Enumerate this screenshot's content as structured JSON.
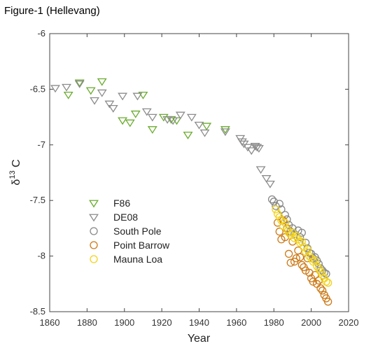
{
  "figure_title": "Figure-1 (Hellevang)",
  "chart_data": {
    "type": "scatter",
    "title": "",
    "xlabel": "Year",
    "ylabel_main": "δ",
    "ylabel_sup": "13",
    "ylabel_tail": " C",
    "xlim": [
      1860,
      2020
    ],
    "ylim": [
      -8.5,
      -6
    ],
    "x_ticks": [
      1860,
      1880,
      1900,
      1920,
      1940,
      1960,
      1980,
      2000,
      2020
    ],
    "y_ticks": [
      -6,
      -6.5,
      -7,
      -7.5,
      -8,
      -8.5
    ],
    "y_tick_labels": [
      "-6",
      "-6.5",
      "-7",
      "-7.5",
      "-8",
      "-8.5"
    ],
    "grid": false,
    "legend_position": "left-middle",
    "series": [
      {
        "name": "F86",
        "marker": "triangle-down",
        "color": "#6aab2e",
        "x": [
          1870,
          1876,
          1882,
          1888,
          1899,
          1903,
          1906,
          1910,
          1915,
          1921,
          1925,
          1928,
          1934,
          1944,
          1954
        ],
        "y": [
          -6.55,
          -6.44,
          -6.51,
          -6.43,
          -6.78,
          -6.8,
          -6.72,
          -6.55,
          -6.86,
          -6.75,
          -6.77,
          -6.78,
          -6.91,
          -6.83,
          -6.86
        ]
      },
      {
        "name": "DE08",
        "marker": "triangle-down",
        "color": "#8c8c8c",
        "x": [
          1863,
          1869,
          1876,
          1884,
          1888,
          1892,
          1894,
          1899,
          1907,
          1912,
          1915,
          1923,
          1926,
          1930,
          1936,
          1940,
          1943,
          1954,
          1962,
          1963,
          1964,
          1966,
          1968,
          1970,
          1971,
          1972,
          1973,
          1976,
          1978
        ],
        "y": [
          -6.49,
          -6.48,
          -6.45,
          -6.6,
          -6.53,
          -6.63,
          -6.67,
          -6.56,
          -6.56,
          -6.7,
          -6.75,
          -6.77,
          -6.78,
          -6.73,
          -6.75,
          -6.82,
          -6.89,
          -6.88,
          -6.94,
          -6.97,
          -6.99,
          -7.02,
          -7.05,
          -7.01,
          -7.02,
          -7.03,
          -7.22,
          -7.3,
          -7.35
        ]
      },
      {
        "name": "South Pole",
        "marker": "circle",
        "color": "#888888",
        "x": [
          1979,
          1980,
          1981,
          1983,
          1984,
          1986,
          1987,
          1988,
          1989,
          1990,
          1991,
          1993,
          1994,
          1995,
          1997,
          1998,
          1999,
          2000,
          2001,
          2002,
          2003,
          2004,
          2005,
          2006,
          2007,
          2008
        ],
        "y": [
          -7.49,
          -7.51,
          -7.55,
          -7.53,
          -7.58,
          -7.63,
          -7.67,
          -7.72,
          -7.78,
          -7.75,
          -7.8,
          -7.77,
          -7.83,
          -7.79,
          -7.88,
          -7.93,
          -7.97,
          -7.98,
          -8.02,
          -8.01,
          -8.04,
          -8.07,
          -8.11,
          -8.13,
          -8.15,
          -8.16
        ]
      },
      {
        "name": "Point Barrow",
        "marker": "circle",
        "color": "#cc7a18",
        "x": [
          1982,
          1983,
          1984,
          1985,
          1986,
          1987,
          1988,
          1989,
          1990,
          1991,
          1992,
          1993,
          1994,
          1995,
          1996,
          1997,
          1998,
          1999,
          2000,
          2001,
          2002,
          2003,
          2004,
          2005,
          2006,
          2007,
          2008,
          2009
        ],
        "y": [
          -7.7,
          -7.78,
          -7.85,
          -7.68,
          -7.83,
          -7.75,
          -7.98,
          -8.06,
          -7.87,
          -8.05,
          -8.02,
          -7.95,
          -8.01,
          -8.08,
          -8.1,
          -8.13,
          -8.02,
          -8.15,
          -8.2,
          -8.23,
          -8.17,
          -8.25,
          -8.22,
          -8.29,
          -8.31,
          -8.35,
          -8.38,
          -8.41
        ]
      },
      {
        "name": "Mauna Loa",
        "marker": "circle",
        "color": "#f2d21b",
        "x": [
          1981,
          1982,
          1983,
          1984,
          1985,
          1986,
          1987,
          1988,
          1989,
          1990,
          1991,
          1992,
          1993,
          1994,
          1995,
          1996,
          1997,
          1998,
          1999,
          2000,
          2001,
          2002,
          2003,
          2004,
          2005,
          2006,
          2007,
          2008,
          2009
        ],
        "y": [
          -7.58,
          -7.62,
          -7.65,
          -7.68,
          -7.73,
          -7.7,
          -7.76,
          -7.79,
          -7.81,
          -7.79,
          -7.84,
          -7.82,
          -7.85,
          -7.88,
          -7.87,
          -7.92,
          -7.96,
          -7.94,
          -8.0,
          -8.02,
          -8.05,
          -8.04,
          -8.09,
          -8.11,
          -8.14,
          -8.17,
          -8.2,
          -8.23,
          -8.24
        ]
      }
    ]
  }
}
